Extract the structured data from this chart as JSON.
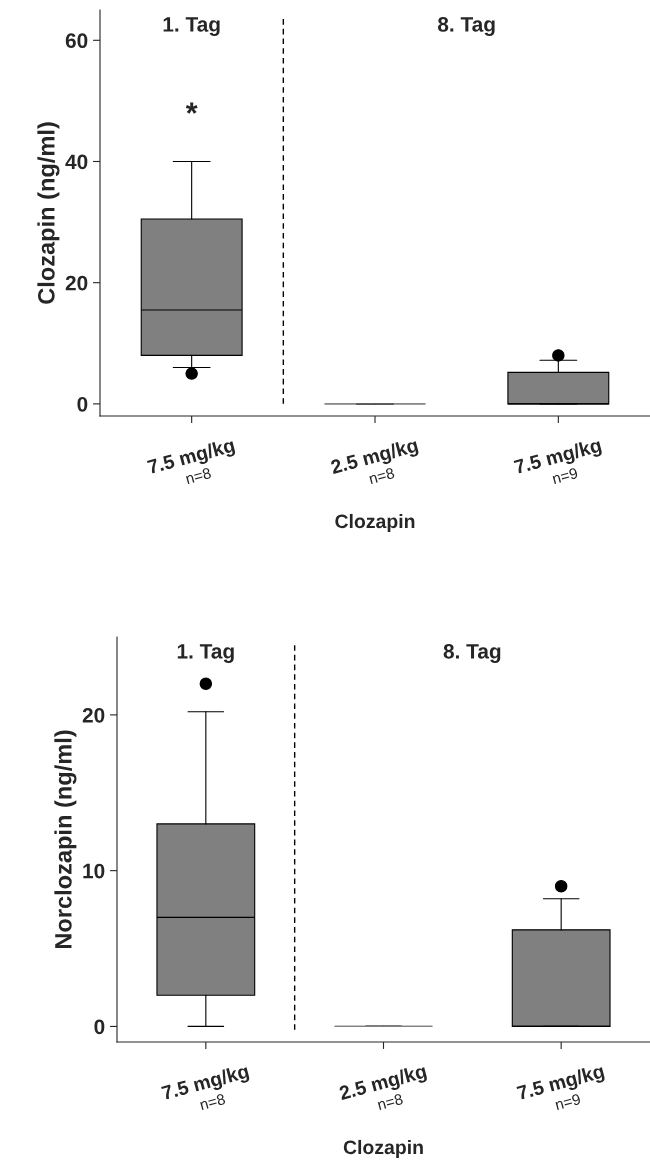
{
  "chart_data": [
    {
      "type": "box",
      "ylabel": "Clozapin (ng/ml)",
      "xlabel": "Clozapin",
      "categories": [
        "7.5 mg/kg\nn=8",
        "2.5 mg/kg\nn=8",
        "7.5 mg/kg\nn=9"
      ],
      "color": "#808080",
      "boxes": [
        {
          "low": 6,
          "q1": 8,
          "median": 15.5,
          "q3": 30.5,
          "high": 40,
          "outliers": [
            5
          ]
        },
        {
          "low": 0,
          "q1": 0,
          "median": 0,
          "q3": 0,
          "high": 0
        },
        {
          "low": 0,
          "q1": 0,
          "median": 0,
          "q3": 5.2,
          "high": 7.2,
          "outliers": [
            8
          ]
        }
      ],
      "ylim": [
        -2,
        65
      ],
      "yticks": [
        0,
        20,
        40,
        60
      ],
      "annotations": [
        "1. Tag",
        "8. Tag",
        "*"
      ]
    },
    {
      "type": "box",
      "ylabel": "Norclozapin (ng/ml)",
      "xlabel": "Clozapin",
      "categories": [
        "7.5 mg/kg\nn=8",
        "2.5 mg/kg\nn=8",
        "7.5 mg/kg\nn=9"
      ],
      "color": "#808080",
      "boxes": [
        {
          "low": 0,
          "q1": 2,
          "median": 7,
          "q3": 13,
          "high": 20.2,
          "outliers": [
            22
          ]
        },
        {
          "low": 0,
          "q1": 0,
          "median": 0,
          "q3": 0,
          "high": 0
        },
        {
          "low": 0,
          "q1": 0,
          "median": 0,
          "q3": 6.2,
          "high": 8.2,
          "outliers": [
            9
          ]
        }
      ],
      "ylim": [
        -1,
        25
      ],
      "yticks": [
        0,
        10,
        20
      ],
      "annotations": [
        "1. Tag",
        "8. Tag"
      ]
    }
  ]
}
